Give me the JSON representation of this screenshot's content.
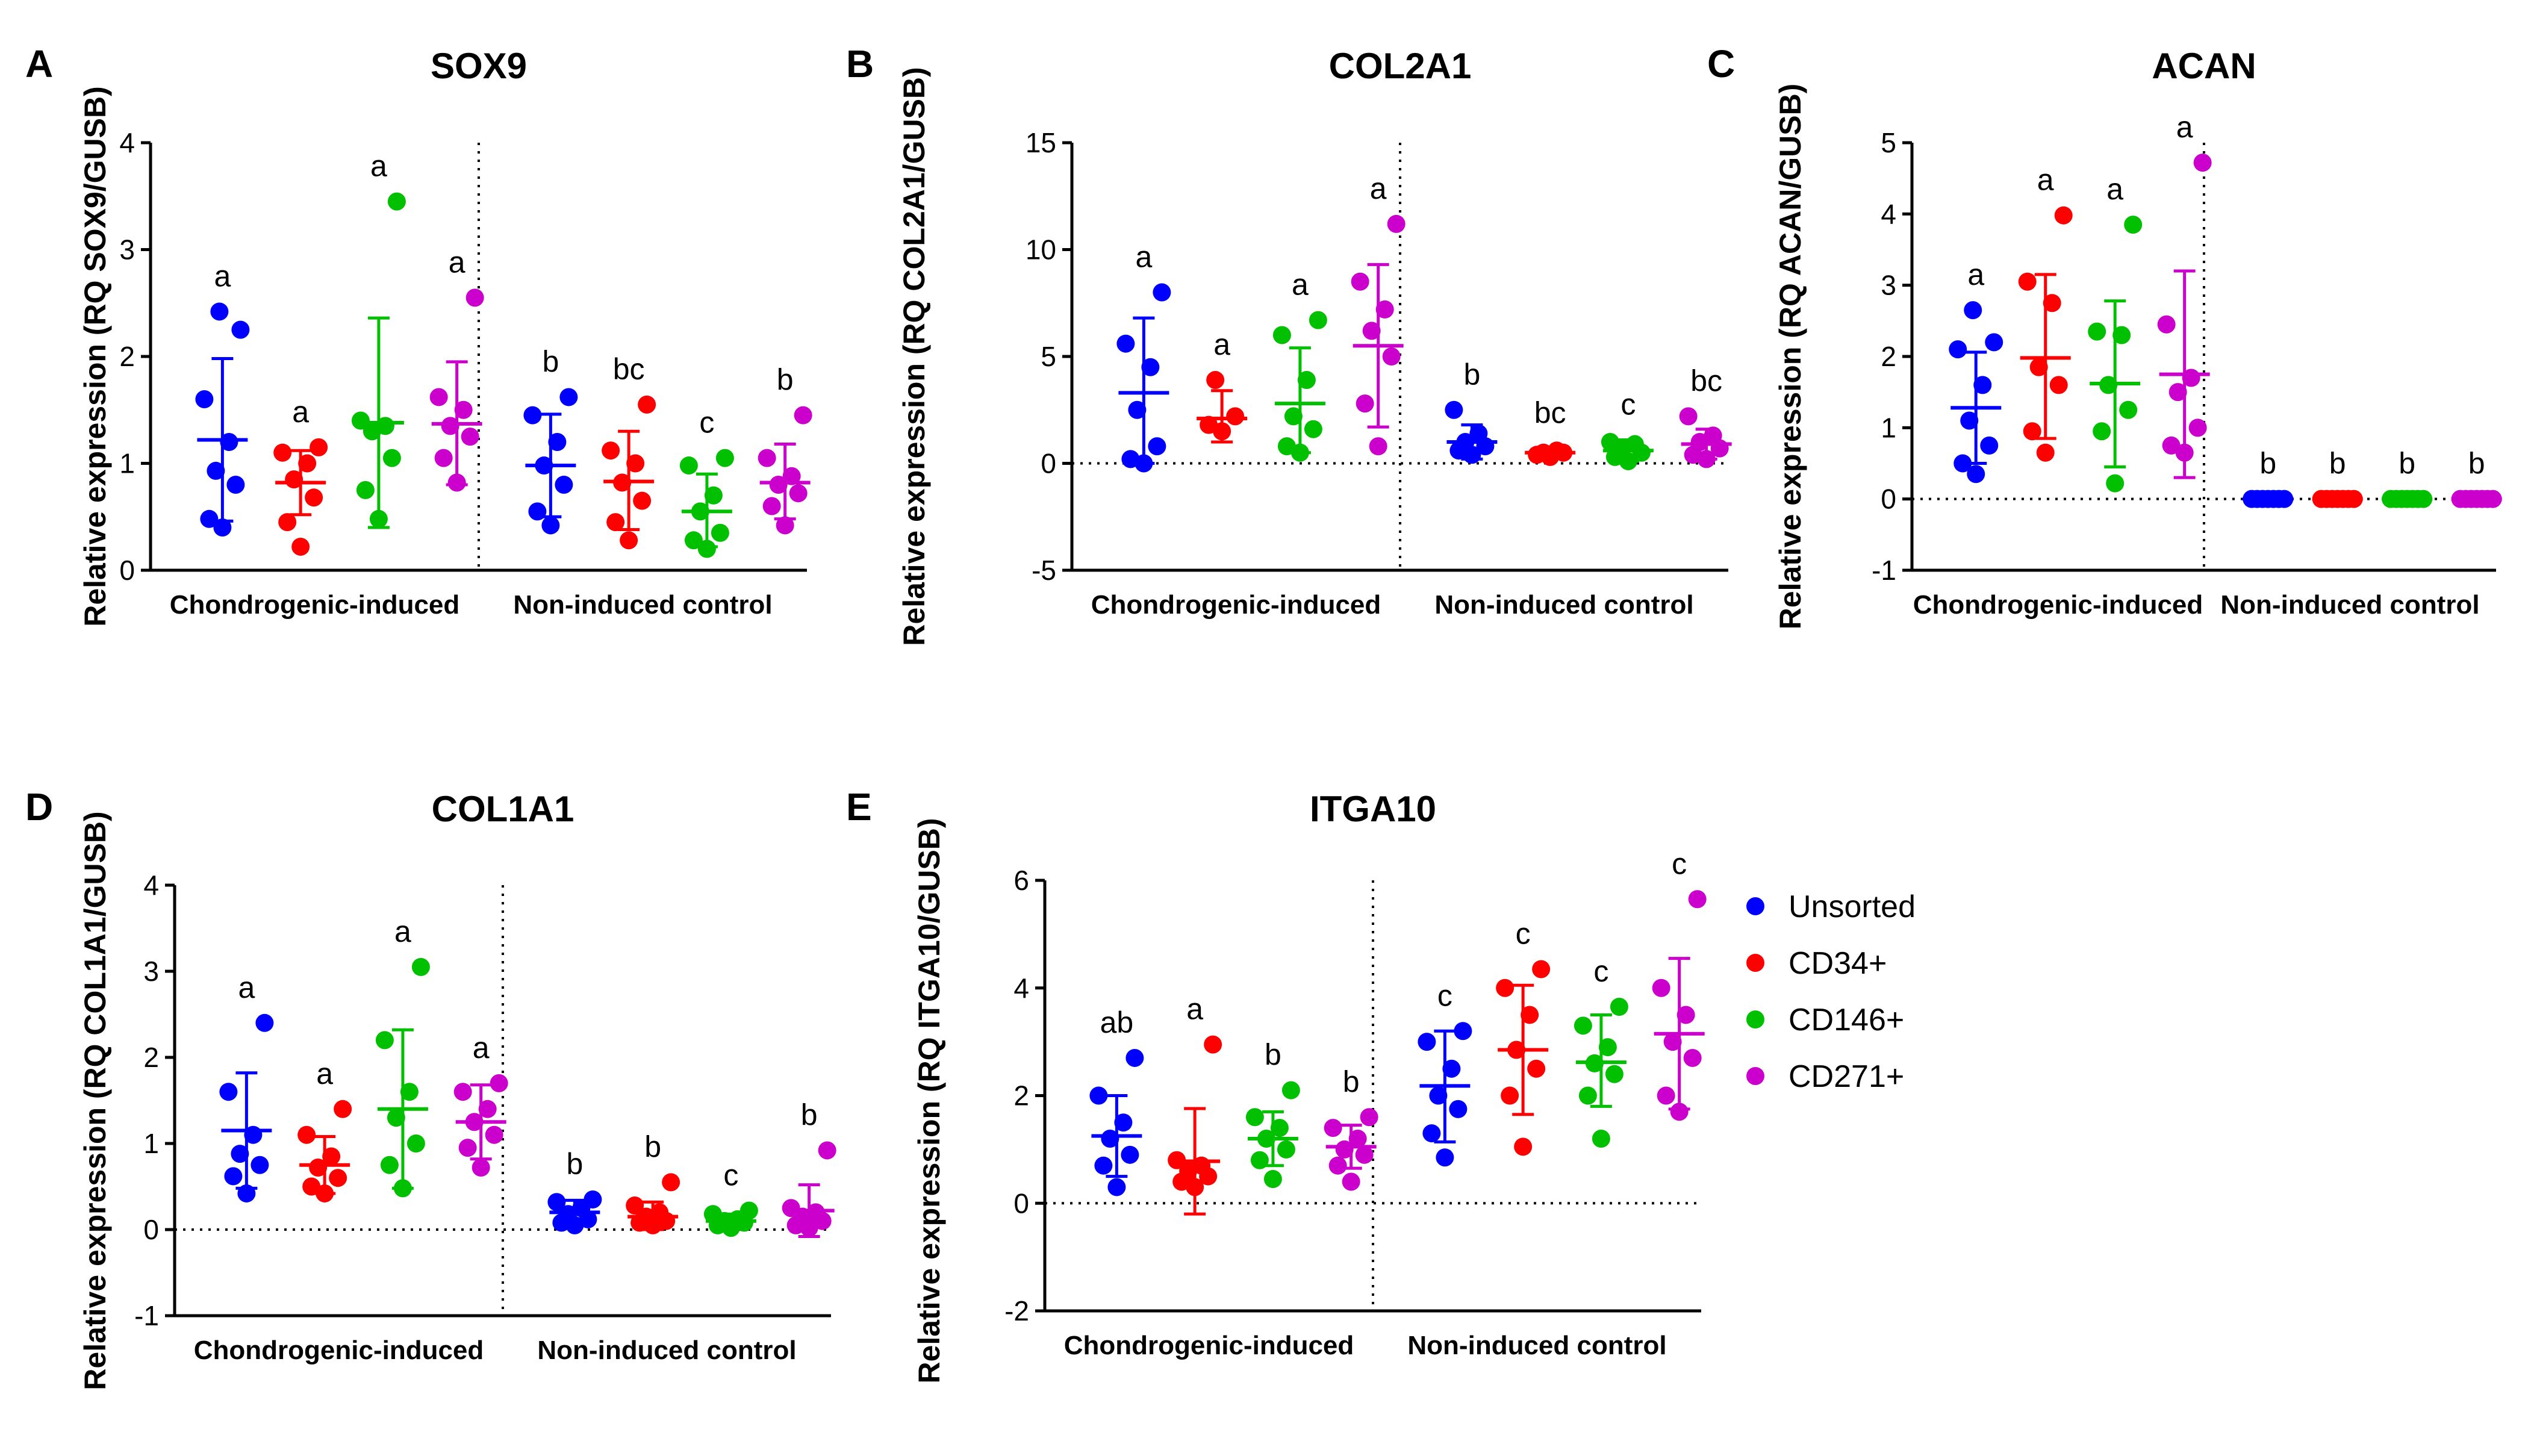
{
  "legend": [
    {
      "label": "Unsorted",
      "color": "#0000ff"
    },
    {
      "label": "CD34+",
      "color": "#ff0000"
    },
    {
      "label": "CD146+",
      "color": "#00c000"
    },
    {
      "label": "CD271+",
      "color": "#cc00cc"
    }
  ],
  "chart_data": [
    {
      "panel": "A",
      "type": "scatter",
      "title": "SOX9",
      "ylabel": "Relative expression (RQ SOX9/GUSB)",
      "ylim": [
        0,
        4
      ],
      "yticks": [
        0,
        1,
        2,
        3,
        4
      ],
      "group_labels": [
        "Chondrogenic-induced",
        "Non-induced control"
      ],
      "series": [
        {
          "group": "Chondrogenic-induced",
          "name": "Unsorted",
          "mean": 1.22,
          "sd_low": 0.46,
          "sd_high": 1.98,
          "sig": "a",
          "points": [
            0.4,
            0.48,
            0.8,
            0.93,
            1.2,
            1.6,
            2.25,
            2.42
          ]
        },
        {
          "group": "Chondrogenic-induced",
          "name": "CD34+",
          "mean": 0.82,
          "sd_low": 0.52,
          "sd_high": 1.12,
          "sig": "a",
          "points": [
            0.22,
            0.45,
            0.68,
            0.85,
            1.0,
            1.1,
            1.15
          ]
        },
        {
          "group": "Chondrogenic-induced",
          "name": "CD146+",
          "mean": 1.38,
          "sd_low": 0.4,
          "sd_high": 2.36,
          "sig": "a",
          "points": [
            0.48,
            0.75,
            1.05,
            1.3,
            1.35,
            1.4,
            3.45
          ]
        },
        {
          "group": "Chondrogenic-induced",
          "name": "CD271+",
          "mean": 1.37,
          "sd_low": 0.8,
          "sd_high": 1.95,
          "sig": "a",
          "points": [
            0.82,
            1.05,
            1.25,
            1.35,
            1.5,
            1.62,
            2.55
          ]
        },
        {
          "group": "Non-induced control",
          "name": "Unsorted",
          "mean": 0.98,
          "sd_low": 0.5,
          "sd_high": 1.46,
          "sig": "b",
          "points": [
            0.42,
            0.55,
            0.8,
            0.98,
            1.2,
            1.45,
            1.62
          ]
        },
        {
          "group": "Non-induced control",
          "name": "CD34+",
          "mean": 0.83,
          "sd_low": 0.38,
          "sd_high": 1.3,
          "sig": "bc",
          "points": [
            0.28,
            0.45,
            0.65,
            0.82,
            1.0,
            1.12,
            1.55
          ]
        },
        {
          "group": "Non-induced control",
          "name": "CD146+",
          "mean": 0.55,
          "sd_low": 0.22,
          "sd_high": 0.9,
          "sig": "c",
          "points": [
            0.2,
            0.28,
            0.35,
            0.55,
            0.7,
            0.98,
            1.05
          ]
        },
        {
          "group": "Non-induced control",
          "name": "CD271+",
          "mean": 0.82,
          "sd_low": 0.48,
          "sd_high": 1.18,
          "sig": "b",
          "points": [
            0.42,
            0.6,
            0.72,
            0.8,
            0.88,
            1.05,
            1.45
          ]
        }
      ]
    },
    {
      "panel": "B",
      "type": "scatter",
      "title": "COL2A1",
      "ylabel": "Relative expression (RQ COL2A1/GUSB)",
      "ylim": [
        -5,
        15
      ],
      "yticks": [
        -5,
        0,
        5,
        10,
        15
      ],
      "group_labels": [
        "Chondrogenic-induced",
        "Non-induced control"
      ],
      "series": [
        {
          "group": "Chondrogenic-induced",
          "name": "Unsorted",
          "mean": 3.3,
          "sd_low": 0.0,
          "sd_high": 6.8,
          "sig": "a",
          "points": [
            0.0,
            0.2,
            0.8,
            2.5,
            4.5,
            5.6,
            8.0
          ]
        },
        {
          "group": "Chondrogenic-induced",
          "name": "CD34+",
          "mean": 2.1,
          "sd_low": 1.0,
          "sd_high": 3.4,
          "sig": "a",
          "points": [
            1.5,
            1.8,
            2.2,
            3.9
          ]
        },
        {
          "group": "Chondrogenic-induced",
          "name": "CD146+",
          "mean": 2.8,
          "sd_low": 0.5,
          "sd_high": 5.4,
          "sig": "a",
          "points": [
            0.5,
            0.8,
            1.6,
            2.2,
            3.9,
            6.0,
            6.7
          ]
        },
        {
          "group": "Chondrogenic-induced",
          "name": "CD271+",
          "mean": 5.5,
          "sd_low": 1.7,
          "sd_high": 9.3,
          "sig": "a",
          "points": [
            0.8,
            2.8,
            5.0,
            6.2,
            7.2,
            8.5,
            11.2
          ]
        },
        {
          "group": "Non-induced control",
          "name": "Unsorted",
          "mean": 1.0,
          "sd_low": 0.2,
          "sd_high": 1.8,
          "sig": "b",
          "points": [
            0.4,
            0.6,
            0.8,
            1.0,
            1.4,
            2.5
          ]
        },
        {
          "group": "Non-induced control",
          "name": "CD34+",
          "mean": 0.5,
          "sd_low": 0.3,
          "sd_high": 0.7,
          "sig": "bc",
          "points": [
            0.3,
            0.4,
            0.5,
            0.5,
            0.6
          ]
        },
        {
          "group": "Non-induced control",
          "name": "CD146+",
          "mean": 0.6,
          "sd_low": 0.1,
          "sd_high": 1.1,
          "sig": "c",
          "points": [
            0.1,
            0.3,
            0.5,
            0.7,
            0.9,
            1.0
          ]
        },
        {
          "group": "Non-induced control",
          "name": "CD271+",
          "mean": 0.9,
          "sd_low": 0.2,
          "sd_high": 1.6,
          "sig": "bc",
          "points": [
            0.2,
            0.4,
            0.7,
            1.0,
            1.3,
            2.2
          ]
        }
      ]
    },
    {
      "panel": "C",
      "type": "scatter",
      "title": "ACAN",
      "ylabel": "Relative expression (RQ ACAN/GUSB)",
      "ylim": [
        -1,
        5
      ],
      "yticks": [
        -1,
        0,
        1,
        2,
        3,
        4,
        5
      ],
      "group_labels": [
        "Chondrogenic-induced",
        "Non-induced control"
      ],
      "series": [
        {
          "group": "Chondrogenic-induced",
          "name": "Unsorted",
          "mean": 1.28,
          "sd_low": 0.5,
          "sd_high": 2.06,
          "sig": "a",
          "points": [
            0.35,
            0.5,
            0.75,
            1.1,
            1.6,
            2.1,
            2.2,
            2.65
          ]
        },
        {
          "group": "Chondrogenic-induced",
          "name": "CD34+",
          "mean": 1.98,
          "sd_low": 0.85,
          "sd_high": 3.15,
          "sig": "a",
          "points": [
            0.65,
            0.95,
            1.6,
            1.85,
            2.75,
            3.05,
            3.98
          ]
        },
        {
          "group": "Chondrogenic-induced",
          "name": "CD146+",
          "mean": 1.62,
          "sd_low": 0.45,
          "sd_high": 2.78,
          "sig": "a",
          "points": [
            0.22,
            0.95,
            1.25,
            1.6,
            2.3,
            2.35,
            3.85
          ]
        },
        {
          "group": "Chondrogenic-induced",
          "name": "CD271+",
          "mean": 1.75,
          "sd_low": 0.3,
          "sd_high": 3.2,
          "sig": "a",
          "points": [
            0.65,
            0.75,
            1.0,
            1.5,
            1.7,
            2.45,
            4.72
          ]
        },
        {
          "group": "Non-induced control",
          "name": "Unsorted",
          "mean": 0.0,
          "sd_low": 0.0,
          "sd_high": 0.0,
          "sig": "b",
          "points": [
            0,
            0,
            0,
            0,
            0,
            0,
            0
          ]
        },
        {
          "group": "Non-induced control",
          "name": "CD34+",
          "mean": 0.0,
          "sd_low": 0.0,
          "sd_high": 0.0,
          "sig": "b",
          "points": [
            0,
            0,
            0,
            0,
            0,
            0,
            0
          ]
        },
        {
          "group": "Non-induced control",
          "name": "CD146+",
          "mean": 0.0,
          "sd_low": 0.0,
          "sd_high": 0.0,
          "sig": "b",
          "points": [
            0,
            0,
            0,
            0,
            0,
            0,
            0
          ]
        },
        {
          "group": "Non-induced control",
          "name": "CD271+",
          "mean": 0.0,
          "sd_low": 0.0,
          "sd_high": 0.0,
          "sig": "b",
          "points": [
            0,
            0,
            0,
            0,
            0,
            0,
            0
          ]
        }
      ]
    },
    {
      "panel": "D",
      "type": "scatter",
      "title": "COL1A1",
      "ylabel": "Relative expression (RQ COL1A1/GUSB)",
      "ylim": [
        -1,
        4
      ],
      "yticks": [
        -1,
        0,
        1,
        2,
        3,
        4
      ],
      "group_labels": [
        "Chondrogenic-induced",
        "Non-induced control"
      ],
      "series": [
        {
          "group": "Chondrogenic-induced",
          "name": "Unsorted",
          "mean": 1.15,
          "sd_low": 0.48,
          "sd_high": 1.82,
          "sig": "a",
          "points": [
            0.42,
            0.62,
            0.75,
            0.88,
            1.1,
            1.6,
            2.4
          ]
        },
        {
          "group": "Chondrogenic-induced",
          "name": "CD34+",
          "mean": 0.75,
          "sd_low": 0.42,
          "sd_high": 1.08,
          "sig": "a",
          "points": [
            0.42,
            0.5,
            0.6,
            0.72,
            0.85,
            1.1,
            1.4
          ]
        },
        {
          "group": "Chondrogenic-induced",
          "name": "CD146+",
          "mean": 1.4,
          "sd_low": 0.48,
          "sd_high": 2.32,
          "sig": "a",
          "points": [
            0.48,
            0.75,
            1.0,
            1.3,
            1.6,
            2.2,
            3.05
          ]
        },
        {
          "group": "Chondrogenic-induced",
          "name": "CD271+",
          "mean": 1.25,
          "sd_low": 0.82,
          "sd_high": 1.68,
          "sig": "a",
          "points": [
            0.72,
            0.95,
            1.1,
            1.25,
            1.4,
            1.6,
            1.7
          ]
        },
        {
          "group": "Non-induced control",
          "name": "Unsorted",
          "mean": 0.2,
          "sd_low": 0.06,
          "sd_high": 0.34,
          "sig": "b",
          "points": [
            0.05,
            0.08,
            0.12,
            0.18,
            0.25,
            0.32,
            0.35
          ]
        },
        {
          "group": "Non-induced control",
          "name": "CD34+",
          "mean": 0.15,
          "sd_low": 0.0,
          "sd_high": 0.32,
          "sig": "b",
          "points": [
            0.05,
            0.08,
            0.1,
            0.15,
            0.2,
            0.28,
            0.55
          ]
        },
        {
          "group": "Non-induced control",
          "name": "CD146+",
          "mean": 0.1,
          "sd_low": 0.03,
          "sd_high": 0.18,
          "sig": "c",
          "points": [
            0.02,
            0.05,
            0.08,
            0.1,
            0.12,
            0.18,
            0.22
          ]
        },
        {
          "group": "Non-induced control",
          "name": "CD271+",
          "mean": 0.22,
          "sd_low": -0.08,
          "sd_high": 0.52,
          "sig": "b",
          "points": [
            0.02,
            0.05,
            0.1,
            0.15,
            0.2,
            0.25,
            0.92
          ]
        }
      ]
    },
    {
      "panel": "E",
      "type": "scatter",
      "title": "ITGA10",
      "ylabel": "Relative expression (RQ ITGA10/GUSB)",
      "ylim": [
        -2,
        6
      ],
      "yticks": [
        -2,
        0,
        2,
        4,
        6
      ],
      "group_labels": [
        "Chondrogenic-induced",
        "Non-induced control"
      ],
      "series": [
        {
          "group": "Chondrogenic-induced",
          "name": "Unsorted",
          "mean": 1.25,
          "sd_low": 0.5,
          "sd_high": 2.0,
          "sig": "ab",
          "points": [
            0.3,
            0.7,
            0.9,
            1.2,
            1.5,
            2.0,
            2.7
          ]
        },
        {
          "group": "Chondrogenic-induced",
          "name": "CD34+",
          "mean": 0.78,
          "sd_low": -0.2,
          "sd_high": 1.76,
          "sig": "a",
          "points": [
            0.3,
            0.4,
            0.5,
            0.6,
            0.7,
            0.8,
            2.95
          ]
        },
        {
          "group": "Chondrogenic-induced",
          "name": "CD146+",
          "mean": 1.2,
          "sd_low": 0.7,
          "sd_high": 1.7,
          "sig": "b",
          "points": [
            0.45,
            0.8,
            1.0,
            1.2,
            1.4,
            1.6,
            2.1
          ]
        },
        {
          "group": "Chondrogenic-induced",
          "name": "CD271+",
          "mean": 1.05,
          "sd_low": 0.65,
          "sd_high": 1.45,
          "sig": "b",
          "points": [
            0.4,
            0.7,
            0.9,
            1.0,
            1.2,
            1.4,
            1.6
          ]
        },
        {
          "group": "Non-induced control",
          "name": "Unsorted",
          "mean": 2.18,
          "sd_low": 1.14,
          "sd_high": 3.2,
          "sig": "c",
          "points": [
            0.85,
            1.3,
            1.75,
            2.0,
            2.5,
            3.0,
            3.2
          ]
        },
        {
          "group": "Non-induced control",
          "name": "CD34+",
          "mean": 2.85,
          "sd_low": 1.65,
          "sd_high": 4.05,
          "sig": "c",
          "points": [
            1.05,
            2.0,
            2.5,
            2.85,
            3.5,
            4.0,
            4.35
          ]
        },
        {
          "group": "Non-induced control",
          "name": "CD146+",
          "mean": 2.62,
          "sd_low": 1.8,
          "sd_high": 3.5,
          "sig": "c",
          "points": [
            1.2,
            2.0,
            2.4,
            2.6,
            2.9,
            3.3,
            3.65
          ]
        },
        {
          "group": "Non-induced control",
          "name": "CD271+",
          "mean": 3.15,
          "sd_low": 1.75,
          "sd_high": 4.55,
          "sig": "c",
          "points": [
            1.7,
            2.0,
            2.7,
            3.0,
            3.5,
            4.0,
            5.65
          ]
        }
      ]
    }
  ]
}
